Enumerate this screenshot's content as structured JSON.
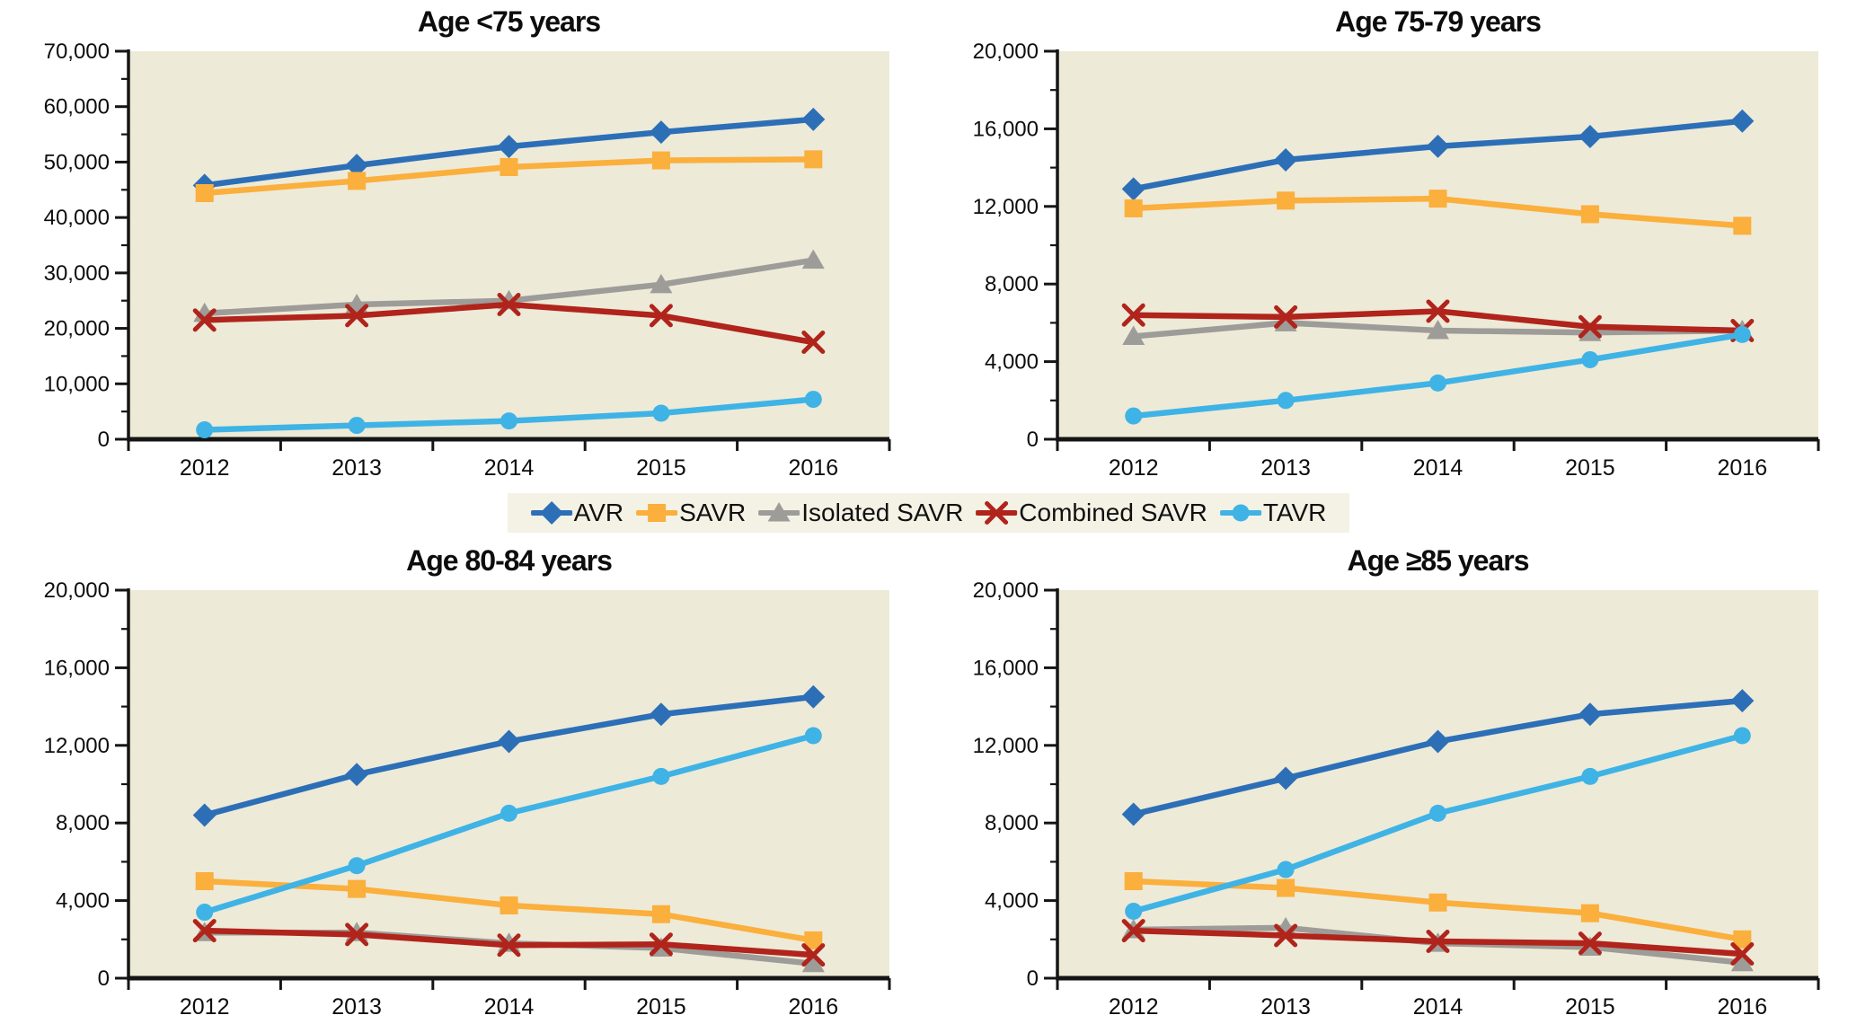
{
  "figure": {
    "background": "#ffffff",
    "plot_background": "#edead8",
    "legend_background": "#f4f2e5",
    "axis_color": "#151515"
  },
  "legend": {
    "entries": [
      {
        "label": "AVR",
        "marker": "diamond",
        "color": "#2d6fb7"
      },
      {
        "label": "SAVR",
        "marker": "square",
        "color": "#fbaf3c"
      },
      {
        "label": "Isolated SAVR",
        "marker": "triangle",
        "color": "#9d9c98"
      },
      {
        "label": "Combined SAVR",
        "marker": "x",
        "color": "#b0241c"
      },
      {
        "label": "TAVR",
        "marker": "circle",
        "color": "#3fb3e5"
      }
    ]
  },
  "chart_data": [
    {
      "type": "line",
      "title": "Age <75 years",
      "categories": [
        "2012",
        "2013",
        "2014",
        "2015",
        "2016"
      ],
      "ylim": [
        0,
        70000
      ],
      "ytick_step": 10000,
      "ytick_minor": 5000,
      "ytick_labels": [
        "0",
        "10,000",
        "20,000",
        "30,000",
        "40,000",
        "50,000",
        "60,000",
        "70,000"
      ],
      "grid": false,
      "legend_position": "shared-center",
      "series": [
        {
          "name": "AVR",
          "marker": "diamond",
          "color": "#2d6fb7",
          "values": [
            45800,
            49400,
            52800,
            55400,
            57700
          ]
        },
        {
          "name": "SAVR",
          "marker": "square",
          "color": "#fbaf3c",
          "values": [
            44400,
            46600,
            49100,
            50300,
            50500
          ]
        },
        {
          "name": "Isolated SAVR",
          "marker": "triangle",
          "color": "#9d9c98",
          "values": [
            22700,
            24300,
            25000,
            27900,
            32300
          ]
        },
        {
          "name": "Combined SAVR",
          "marker": "x",
          "color": "#b0241c",
          "values": [
            21500,
            22300,
            24300,
            22300,
            17500
          ]
        },
        {
          "name": "TAVR",
          "marker": "circle",
          "color": "#3fb3e5",
          "values": [
            1700,
            2500,
            3300,
            4700,
            7200
          ]
        }
      ]
    },
    {
      "type": "line",
      "title": "Age 75-79 years",
      "categories": [
        "2012",
        "2013",
        "2014",
        "2015",
        "2016"
      ],
      "ylim": [
        0,
        20000
      ],
      "ytick_step": 4000,
      "ytick_minor": 2000,
      "ytick_labels": [
        "0",
        "4,000",
        "8,000",
        "12,000",
        "16,000",
        "20,000"
      ],
      "grid": false,
      "legend_position": "shared-center",
      "series": [
        {
          "name": "AVR",
          "marker": "diamond",
          "color": "#2d6fb7",
          "values": [
            12900,
            14400,
            15100,
            15600,
            16400
          ]
        },
        {
          "name": "SAVR",
          "marker": "square",
          "color": "#fbaf3c",
          "values": [
            11900,
            12300,
            12400,
            11600,
            11000
          ]
        },
        {
          "name": "Isolated SAVR",
          "marker": "triangle",
          "color": "#9d9c98",
          "values": [
            5300,
            6000,
            5600,
            5500,
            5600
          ]
        },
        {
          "name": "Combined SAVR",
          "marker": "x",
          "color": "#b0241c",
          "values": [
            6400,
            6300,
            6600,
            5800,
            5600
          ]
        },
        {
          "name": "TAVR",
          "marker": "circle",
          "color": "#3fb3e5",
          "values": [
            1200,
            2000,
            2900,
            4100,
            5400
          ]
        }
      ]
    },
    {
      "type": "line",
      "title": "Age 80-84 years",
      "categories": [
        "2012",
        "2013",
        "2014",
        "2015",
        "2016"
      ],
      "ylim": [
        0,
        20000
      ],
      "ytick_step": 4000,
      "ytick_minor": 2000,
      "ytick_labels": [
        "0",
        "4,000",
        "8,000",
        "12,000",
        "16,000",
        "20,000"
      ],
      "grid": false,
      "legend_position": "shared-center",
      "series": [
        {
          "name": "AVR",
          "marker": "diamond",
          "color": "#2d6fb7",
          "values": [
            8400,
            10500,
            12200,
            13600,
            14500
          ]
        },
        {
          "name": "SAVR",
          "marker": "square",
          "color": "#fbaf3c",
          "values": [
            5000,
            4600,
            3750,
            3300,
            1950
          ]
        },
        {
          "name": "Isolated SAVR",
          "marker": "triangle",
          "color": "#9d9c98",
          "values": [
            2350,
            2350,
            1800,
            1550,
            750
          ]
        },
        {
          "name": "Combined SAVR",
          "marker": "x",
          "color": "#b0241c",
          "values": [
            2450,
            2250,
            1700,
            1750,
            1200
          ]
        },
        {
          "name": "TAVR",
          "marker": "circle",
          "color": "#3fb3e5",
          "values": [
            3400,
            5800,
            8500,
            10400,
            12500
          ]
        }
      ]
    },
    {
      "type": "line",
      "title": "Age ≥85 years",
      "categories": [
        "2012",
        "2013",
        "2014",
        "2015",
        "2016"
      ],
      "ylim": [
        0,
        20000
      ],
      "ytick_step": 4000,
      "ytick_minor": 2000,
      "ytick_labels": [
        "0",
        "4,000",
        "8,000",
        "12,000",
        "16,000",
        "20,000"
      ],
      "grid": false,
      "legend_position": "shared-center",
      "series": [
        {
          "name": "AVR",
          "marker": "diamond",
          "color": "#2d6fb7",
          "values": [
            8450,
            10300,
            12200,
            13600,
            14300
          ]
        },
        {
          "name": "SAVR",
          "marker": "square",
          "color": "#fbaf3c",
          "values": [
            5000,
            4650,
            3900,
            3350,
            2000
          ]
        },
        {
          "name": "Isolated SAVR",
          "marker": "triangle",
          "color": "#9d9c98",
          "values": [
            2500,
            2600,
            1800,
            1600,
            800
          ]
        },
        {
          "name": "Combined SAVR",
          "marker": "x",
          "color": "#b0241c",
          "values": [
            2450,
            2200,
            1900,
            1800,
            1250
          ]
        },
        {
          "name": "TAVR",
          "marker": "circle",
          "color": "#3fb3e5",
          "values": [
            3450,
            5600,
            8500,
            10400,
            12500
          ]
        }
      ]
    }
  ]
}
